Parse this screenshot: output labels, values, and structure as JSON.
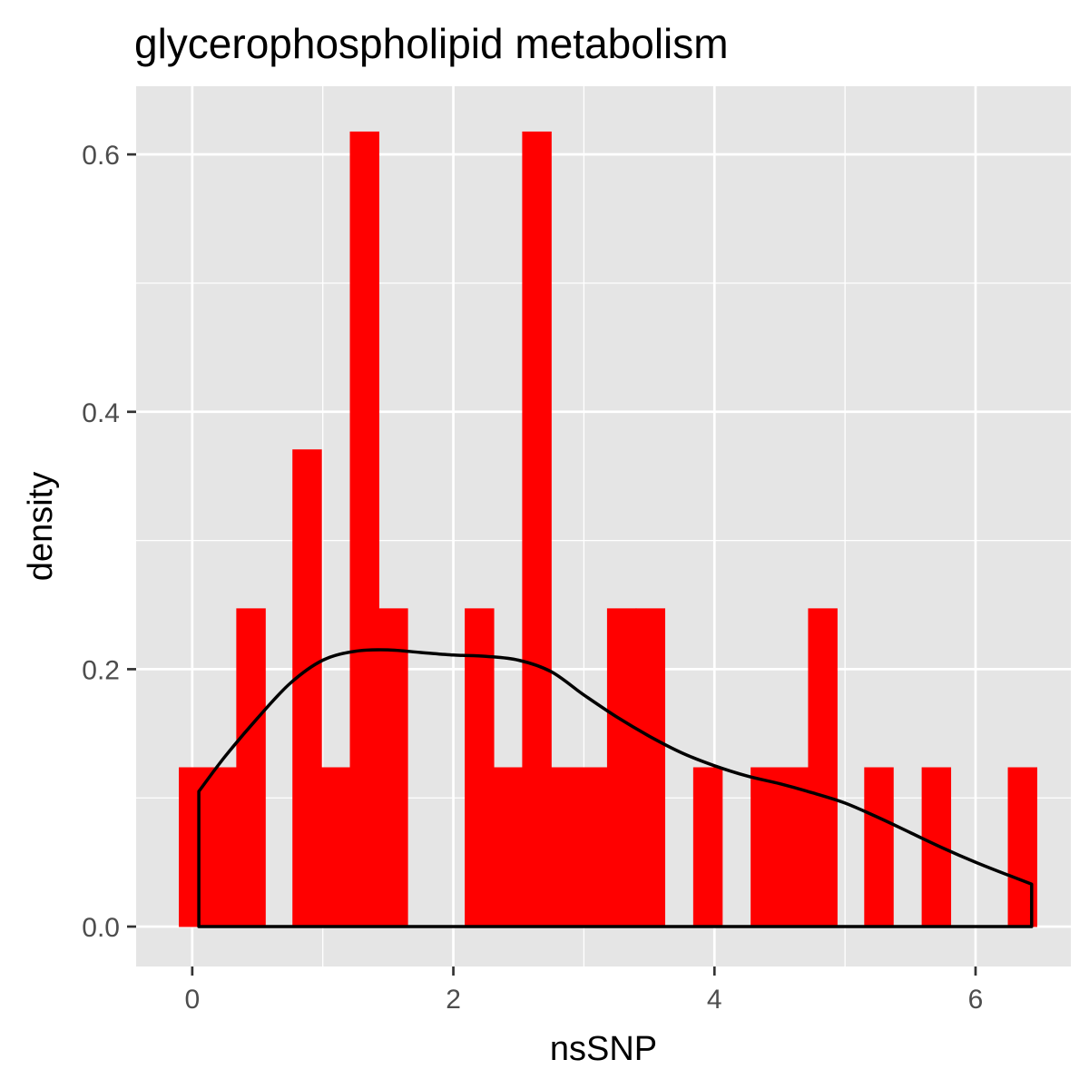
{
  "chart_data": {
    "type": "bar",
    "subtype": "histogram-with-density",
    "title": "glycerophospholipid metabolism",
    "xlabel": "nsSNP",
    "ylabel": "density",
    "xlim": [
      -0.43,
      6.73
    ],
    "ylim": [
      -0.031,
      0.653
    ],
    "x_ticks": [
      0,
      2,
      4,
      6
    ],
    "x_tick_labels": [
      "0",
      "2",
      "4",
      "6"
    ],
    "y_ticks": [
      0.0,
      0.2,
      0.4,
      0.6
    ],
    "y_tick_labels": [
      "0.0",
      "0.2",
      "0.4",
      "0.6"
    ],
    "grid": true,
    "bin_width": 0.22,
    "bins": [
      {
        "x0": -0.1,
        "x1": 0.12,
        "density": 0.1235
      },
      {
        "x0": 0.12,
        "x1": 0.34,
        "density": 0.1235
      },
      {
        "x0": 0.34,
        "x1": 0.56,
        "density": 0.247
      },
      {
        "x0": 0.77,
        "x1": 0.99,
        "density": 0.3705
      },
      {
        "x0": 0.99,
        "x1": 1.21,
        "density": 0.1235
      },
      {
        "x0": 1.21,
        "x1": 1.43,
        "density": 0.6175
      },
      {
        "x0": 1.43,
        "x1": 1.65,
        "density": 0.247
      },
      {
        "x0": 2.09,
        "x1": 2.31,
        "density": 0.247
      },
      {
        "x0": 2.31,
        "x1": 2.53,
        "density": 0.1235
      },
      {
        "x0": 2.53,
        "x1": 2.75,
        "density": 0.6175
      },
      {
        "x0": 2.75,
        "x1": 2.96,
        "density": 0.1235
      },
      {
        "x0": 2.96,
        "x1": 3.18,
        "density": 0.1235
      },
      {
        "x0": 3.18,
        "x1": 3.4,
        "density": 0.247
      },
      {
        "x0": 3.4,
        "x1": 3.62,
        "density": 0.247
      },
      {
        "x0": 3.84,
        "x1": 4.06,
        "density": 0.1235
      },
      {
        "x0": 4.28,
        "x1": 4.5,
        "density": 0.1235
      },
      {
        "x0": 4.5,
        "x1": 4.72,
        "density": 0.1235
      },
      {
        "x0": 4.72,
        "x1": 4.94,
        "density": 0.247
      },
      {
        "x0": 5.15,
        "x1": 5.37,
        "density": 0.1235
      },
      {
        "x0": 5.59,
        "x1": 5.81,
        "density": 0.1235
      },
      {
        "x0": 6.25,
        "x1": 6.47,
        "density": 0.1235
      }
    ],
    "density_curve": {
      "x": [
        0.05,
        0.25,
        0.5,
        0.75,
        1.0,
        1.25,
        1.5,
        1.75,
        2.0,
        2.25,
        2.5,
        2.75,
        3.0,
        3.25,
        3.5,
        3.75,
        4.0,
        4.25,
        4.5,
        4.75,
        5.0,
        5.25,
        5.5,
        5.75,
        6.0,
        6.25,
        6.43
      ],
      "y": [
        0.105,
        0.132,
        0.162,
        0.189,
        0.207,
        0.214,
        0.215,
        0.213,
        0.211,
        0.21,
        0.207,
        0.198,
        0.18,
        0.163,
        0.148,
        0.135,
        0.125,
        0.117,
        0.111,
        0.104,
        0.096,
        0.085,
        0.073,
        0.061,
        0.05,
        0.04,
        0.033
      ]
    },
    "bar_color": "#ff0000",
    "line_color": "#000000",
    "panel_background": "#e5e5e5",
    "grid_color": "#ffffff"
  }
}
